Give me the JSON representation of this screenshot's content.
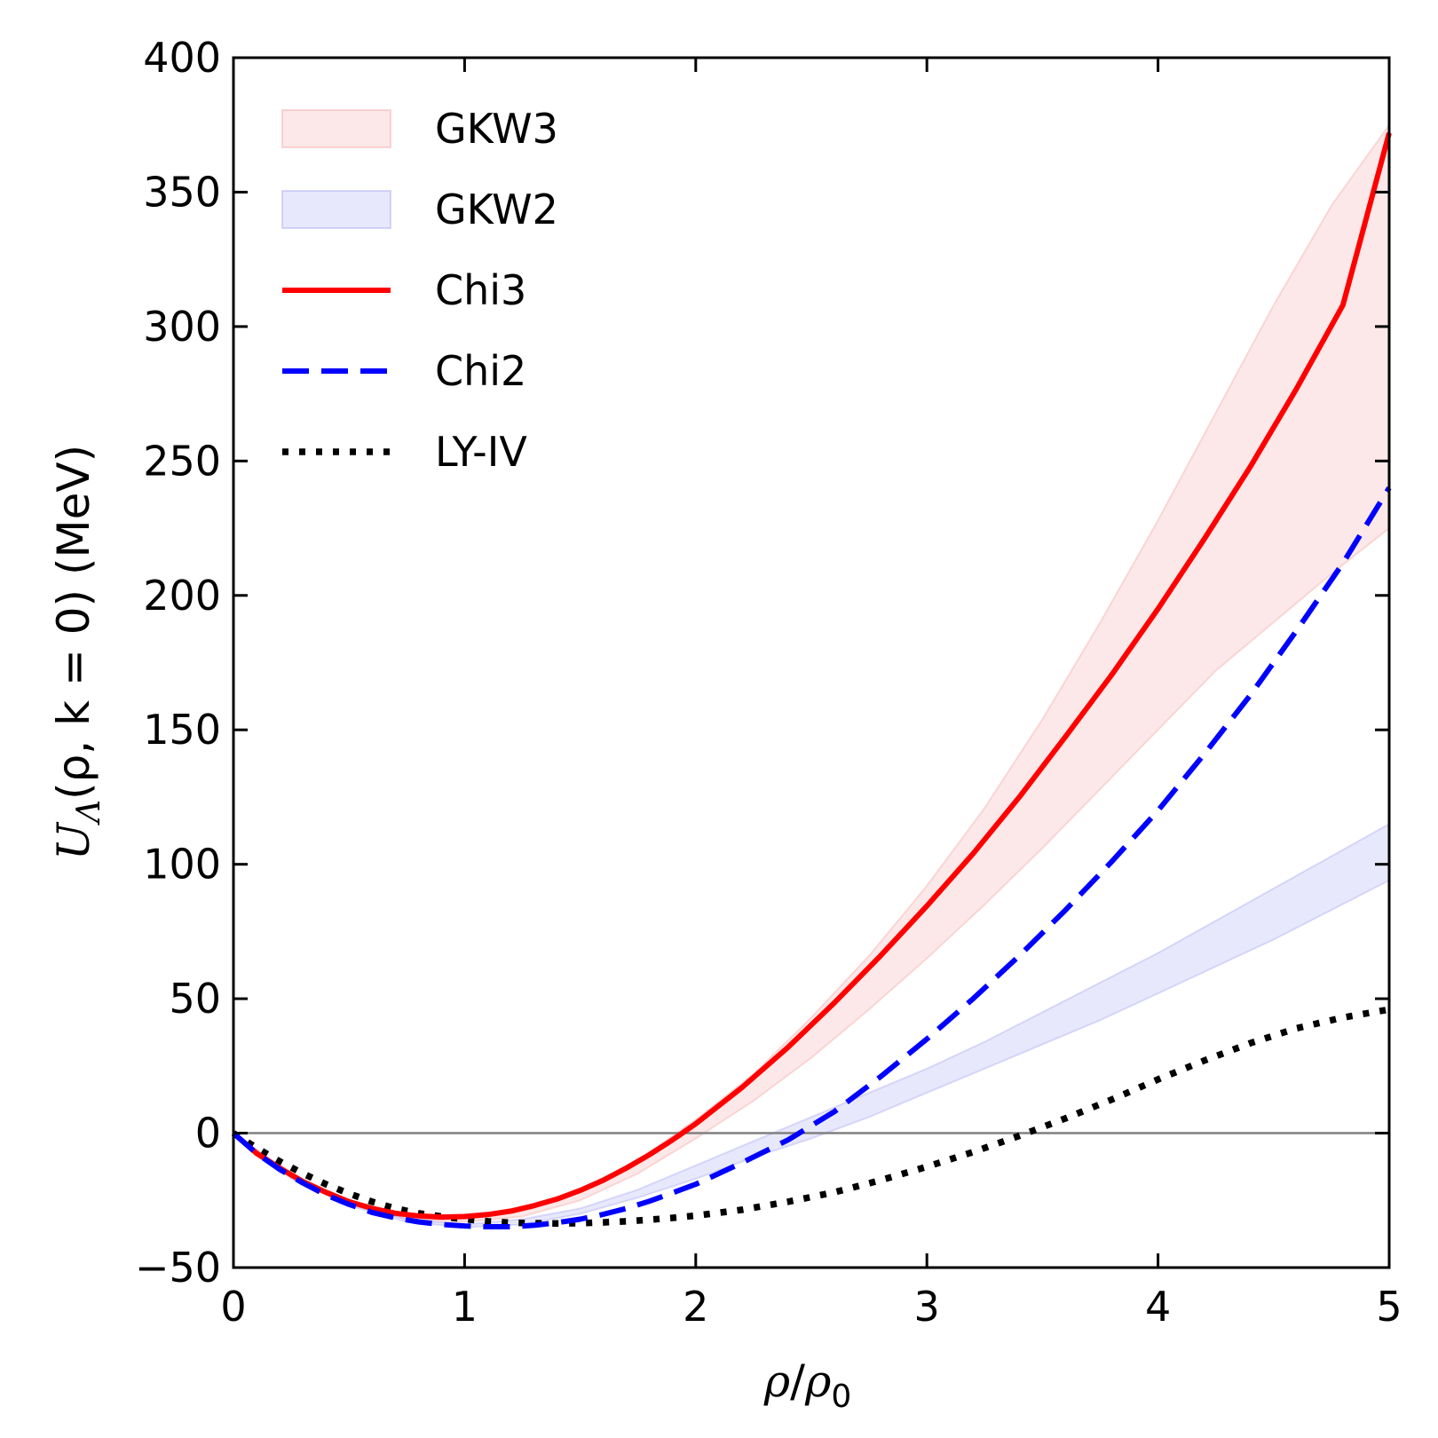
{
  "chart_data": {
    "type": "line",
    "xlabel": {
      "var": "ρ",
      "sep": "/",
      "var2": "ρ",
      "sub": "0"
    },
    "ylabel": {
      "var": "U",
      "sub": "Λ",
      "args": "(ρ, k = 0)",
      "unit": " (MeV)"
    },
    "xlim": [
      0,
      5
    ],
    "ylim": [
      -50,
      400
    ],
    "x_ticks": [
      "0",
      "1",
      "2",
      "3",
      "4",
      "5"
    ],
    "y_ticks": [
      "−50",
      "0",
      "50",
      "100",
      "150",
      "200",
      "250",
      "300",
      "350",
      "400"
    ],
    "zero_line": true,
    "grid": false,
    "legend_position": "top-left",
    "bands": [
      {
        "name": "GKW3",
        "color": "#f08080",
        "x": [
          0,
          0.25,
          0.5,
          0.75,
          1.0,
          1.25,
          1.5,
          1.75,
          2.0,
          2.25,
          2.5,
          2.75,
          3.0,
          3.25,
          3.5,
          3.75,
          4.0,
          4.25,
          4.5,
          4.75,
          5.0
        ],
        "lower": [
          0,
          -16,
          -26,
          -32,
          -33,
          -31,
          -25,
          -15,
          -2,
          12,
          28,
          46,
          65,
          85,
          106,
          128,
          150,
          172,
          190,
          208,
          225
        ],
        "upper": [
          0,
          -15,
          -25,
          -30,
          -31,
          -28,
          -21,
          -10,
          5,
          22,
          43,
          66,
          92,
          121,
          154,
          190,
          228,
          268,
          308,
          345,
          375
        ]
      },
      {
        "name": "GKW2",
        "color": "#8080f0",
        "x": [
          0,
          0.25,
          0.5,
          0.75,
          1.0,
          1.25,
          1.5,
          1.75,
          2.0,
          2.25,
          2.5,
          2.75,
          3.0,
          3.25,
          3.5,
          3.75,
          4.0,
          4.25,
          4.5,
          4.75,
          5.0
        ],
        "lower": [
          0,
          -17,
          -27,
          -33,
          -35,
          -34,
          -30,
          -24,
          -17,
          -9,
          -2,
          6,
          15,
          24,
          33,
          42,
          52,
          62,
          72,
          83,
          94
        ],
        "upper": [
          0,
          -16,
          -26,
          -32,
          -34,
          -32,
          -28,
          -21,
          -12,
          -3,
          6,
          15,
          24,
          34,
          45,
          56,
          67,
          79,
          91,
          103,
          115
        ]
      }
    ],
    "series": [
      {
        "name": "Chi3",
        "color": "#ff0000",
        "style": "solid",
        "x": [
          0,
          0.1,
          0.2,
          0.3,
          0.4,
          0.5,
          0.6,
          0.7,
          0.8,
          0.9,
          1.0,
          1.1,
          1.2,
          1.3,
          1.4,
          1.5,
          1.6,
          1.7,
          1.8,
          1.9,
          2.0,
          2.2,
          2.4,
          2.6,
          2.8,
          3.0,
          3.2,
          3.4,
          3.6,
          3.8,
          4.0,
          4.2,
          4.4,
          4.6,
          4.8,
          5.0
        ],
        "y": [
          0,
          -7.5,
          -13,
          -18,
          -22,
          -25.5,
          -28,
          -29.8,
          -30.8,
          -31.2,
          -31,
          -30.3,
          -29,
          -27,
          -24.5,
          -21.3,
          -17.5,
          -13,
          -8,
          -2.5,
          3.5,
          17,
          32,
          48.5,
          66,
          84.5,
          104,
          125,
          147.5,
          170.5,
          195,
          221,
          248,
          277,
          308,
          372
        ]
      },
      {
        "name": "Chi2",
        "color": "#0000ff",
        "style": "dashed",
        "x": [
          0,
          0.1,
          0.2,
          0.3,
          0.4,
          0.5,
          0.6,
          0.7,
          0.8,
          0.9,
          1.0,
          1.1,
          1.2,
          1.3,
          1.4,
          1.5,
          1.6,
          1.7,
          1.8,
          1.9,
          2.0,
          2.2,
          2.4,
          2.6,
          2.8,
          3.0,
          3.2,
          3.4,
          3.6,
          3.8,
          4.0,
          4.2,
          4.4,
          4.6,
          4.8,
          5.0
        ],
        "y": [
          0,
          -7.5,
          -13.5,
          -18.5,
          -23,
          -26.5,
          -29.5,
          -31.5,
          -33,
          -34,
          -34.5,
          -34.8,
          -34.8,
          -34.3,
          -33.3,
          -32,
          -30.2,
          -28,
          -25.3,
          -22.2,
          -19,
          -11,
          -2.5,
          8,
          21,
          35,
          50,
          66,
          83,
          101,
          120,
          141,
          163,
          187,
          212,
          240
        ]
      },
      {
        "name": "LY-IV",
        "color": "#000000",
        "style": "dotted",
        "x": [
          0,
          0.1,
          0.2,
          0.3,
          0.4,
          0.5,
          0.6,
          0.7,
          0.8,
          0.9,
          1.0,
          1.1,
          1.2,
          1.3,
          1.4,
          1.5,
          1.6,
          1.7,
          1.8,
          1.9,
          2.0,
          2.2,
          2.4,
          2.6,
          2.8,
          3.0,
          3.2,
          3.4,
          3.6,
          3.8,
          4.0,
          4.2,
          4.4,
          4.6,
          4.8,
          5.0
        ],
        "y": [
          0,
          -5.5,
          -10.5,
          -15,
          -19,
          -22.5,
          -25.5,
          -28,
          -29.8,
          -31,
          -32,
          -32.8,
          -33.3,
          -33.5,
          -33.6,
          -33.5,
          -33.2,
          -32.8,
          -32.2,
          -31.5,
          -30.7,
          -28.5,
          -25.5,
          -22,
          -17.5,
          -12.5,
          -7,
          -1,
          5.5,
          12.5,
          20,
          27,
          33.5,
          39,
          43,
          46
        ]
      }
    ]
  }
}
